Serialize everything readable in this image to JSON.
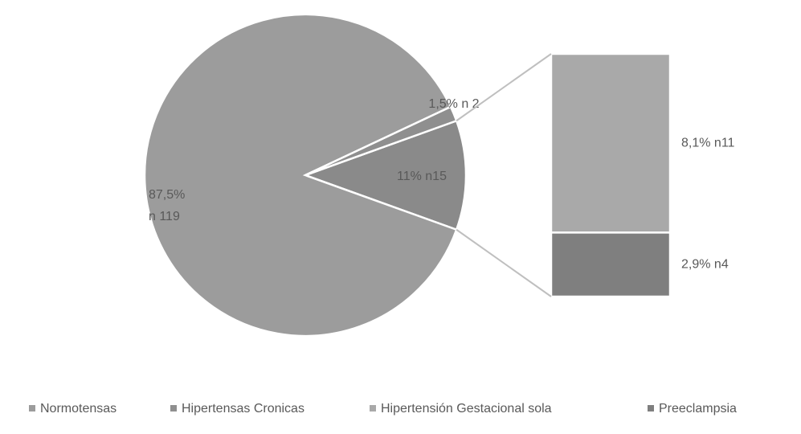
{
  "chart_data": {
    "type": "bar-of-pie",
    "categories": [
      "Normotensas",
      "Hipertensas Cronicas",
      "Hipertensión Gestacional sola",
      "Preeclampsia"
    ],
    "colors": [
      "#9c9c9c",
      "#8f8f8f",
      "#a9a9a9",
      "#7f7f7f"
    ],
    "pie": {
      "values": [
        87.5,
        1.5,
        11
      ],
      "value_labels": [
        "87,5%\nn 119",
        "1,5% n 2",
        "11% n15"
      ],
      "colors": [
        "#9c9c9c",
        "#8f8f8f",
        "#8a8a8a"
      ]
    },
    "bar": {
      "values": [
        8.1,
        2.9
      ],
      "value_labels": [
        "8,1% n11",
        "2,9% n4"
      ]
    },
    "legend": "bottom"
  }
}
